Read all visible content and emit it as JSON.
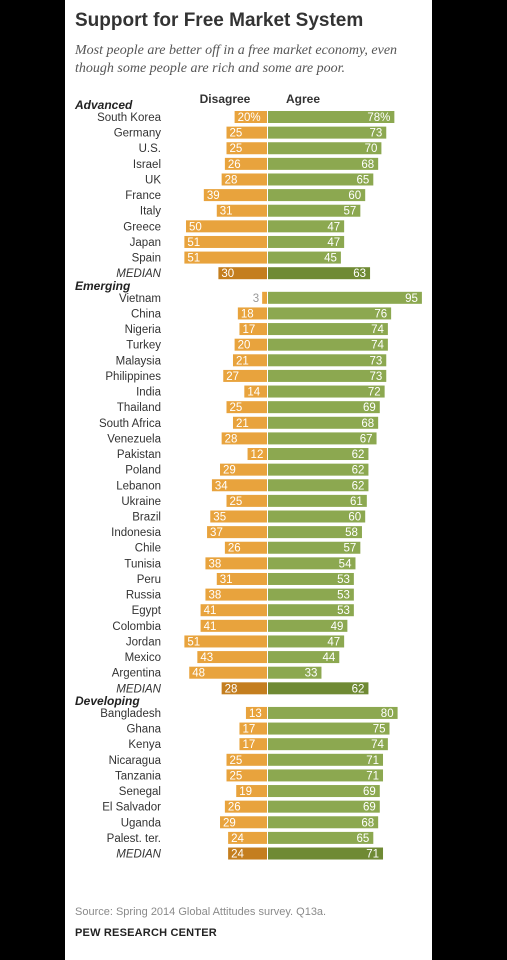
{
  "title": "Support for Free Market System",
  "subtitle": "Most people are better off in a free market economy, even though some people are rich and some are poor.",
  "source": "Source: Spring 2014 Global Attitudes survey. Q13a.",
  "brand": "PEW RESEARCH CENTER",
  "colors": {
    "disagree": "#E8A33D",
    "agree": "#8CA850",
    "disagree_median": "#C47E1F",
    "agree_median": "#6F8A34",
    "label_inside": "#ffffff",
    "label_outside": "#999999"
  },
  "chart_data": {
    "type": "bar",
    "orientation": "horizontal-diverging",
    "series_names": [
      "Disagree",
      "Agree"
    ],
    "unit": "%",
    "groups": [
      {
        "name": "Advanced",
        "rows": [
          {
            "label": "South Korea",
            "disagree": 20,
            "agree": 78,
            "disagree_text": "20%",
            "agree_text": "78%"
          },
          {
            "label": "Germany",
            "disagree": 25,
            "agree": 73
          },
          {
            "label": "U.S.",
            "disagree": 25,
            "agree": 70
          },
          {
            "label": "Israel",
            "disagree": 26,
            "agree": 68
          },
          {
            "label": "UK",
            "disagree": 28,
            "agree": 65
          },
          {
            "label": "France",
            "disagree": 39,
            "agree": 60
          },
          {
            "label": "Italy",
            "disagree": 31,
            "agree": 57
          },
          {
            "label": "Greece",
            "disagree": 50,
            "agree": 47
          },
          {
            "label": "Japan",
            "disagree": 51,
            "agree": 47
          },
          {
            "label": "Spain",
            "disagree": 51,
            "agree": 45
          },
          {
            "label": "MEDIAN",
            "disagree": 30,
            "agree": 63,
            "median": true
          }
        ]
      },
      {
        "name": "Emerging",
        "rows": [
          {
            "label": "Vietnam",
            "disagree": 3,
            "agree": 95
          },
          {
            "label": "China",
            "disagree": 18,
            "agree": 76
          },
          {
            "label": "Nigeria",
            "disagree": 17,
            "agree": 74
          },
          {
            "label": "Turkey",
            "disagree": 20,
            "agree": 74
          },
          {
            "label": "Malaysia",
            "disagree": 21,
            "agree": 73
          },
          {
            "label": "Philippines",
            "disagree": 27,
            "agree": 73
          },
          {
            "label": "India",
            "disagree": 14,
            "agree": 72
          },
          {
            "label": "Thailand",
            "disagree": 25,
            "agree": 69
          },
          {
            "label": "South Africa",
            "disagree": 21,
            "agree": 68
          },
          {
            "label": "Venezuela",
            "disagree": 28,
            "agree": 67
          },
          {
            "label": "Pakistan",
            "disagree": 12,
            "agree": 62
          },
          {
            "label": "Poland",
            "disagree": 29,
            "agree": 62
          },
          {
            "label": "Lebanon",
            "disagree": 34,
            "agree": 62
          },
          {
            "label": "Ukraine",
            "disagree": 25,
            "agree": 61
          },
          {
            "label": "Brazil",
            "disagree": 35,
            "agree": 60
          },
          {
            "label": "Indonesia",
            "disagree": 37,
            "agree": 58
          },
          {
            "label": "Chile",
            "disagree": 26,
            "agree": 57
          },
          {
            "label": "Tunisia",
            "disagree": 38,
            "agree": 54
          },
          {
            "label": "Peru",
            "disagree": 31,
            "agree": 53
          },
          {
            "label": "Russia",
            "disagree": 38,
            "agree": 53
          },
          {
            "label": "Egypt",
            "disagree": 41,
            "agree": 53
          },
          {
            "label": "Colombia",
            "disagree": 41,
            "agree": 49
          },
          {
            "label": "Jordan",
            "disagree": 51,
            "agree": 47
          },
          {
            "label": "Mexico",
            "disagree": 43,
            "agree": 44
          },
          {
            "label": "Argentina",
            "disagree": 48,
            "agree": 33
          },
          {
            "label": "MEDIAN",
            "disagree": 28,
            "agree": 62,
            "median": true
          }
        ]
      },
      {
        "name": "Developing",
        "rows": [
          {
            "label": "Bangladesh",
            "disagree": 13,
            "agree": 80
          },
          {
            "label": "Ghana",
            "disagree": 17,
            "agree": 75
          },
          {
            "label": "Kenya",
            "disagree": 17,
            "agree": 74
          },
          {
            "label": "Nicaragua",
            "disagree": 25,
            "agree": 71
          },
          {
            "label": "Tanzania",
            "disagree": 25,
            "agree": 71
          },
          {
            "label": "Senegal",
            "disagree": 19,
            "agree": 69
          },
          {
            "label": "El Salvador",
            "disagree": 26,
            "agree": 69
          },
          {
            "label": "Uganda",
            "disagree": 29,
            "agree": 68
          },
          {
            "label": "Palest. ter.",
            "disagree": 24,
            "agree": 65
          },
          {
            "label": "MEDIAN",
            "disagree": 24,
            "agree": 71,
            "median": true
          }
        ]
      }
    ]
  }
}
